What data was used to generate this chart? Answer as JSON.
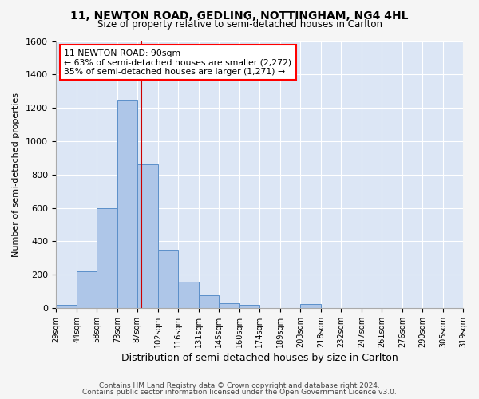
{
  "title1": "11, NEWTON ROAD, GEDLING, NOTTINGHAM, NG4 4HL",
  "title2": "Size of property relative to semi-detached houses in Carlton",
  "xlabel": "Distribution of semi-detached houses by size in Carlton",
  "ylabel": "Number of semi-detached properties",
  "footnote1": "Contains HM Land Registry data © Crown copyright and database right 2024.",
  "footnote2": "Contains public sector information licensed under the Open Government Licence v3.0.",
  "annotation_title": "11 NEWTON ROAD: 90sqm",
  "annotation_line1": "← 63% of semi-detached houses are smaller (2,272)",
  "annotation_line2": "35% of semi-detached houses are larger (1,271) →",
  "subject_size": 90,
  "bar_edges": [
    29,
    44,
    58,
    73,
    87,
    102,
    116,
    131,
    145,
    160,
    174,
    189,
    203,
    218,
    232,
    247,
    261,
    276,
    290,
    305,
    319
  ],
  "bar_heights": [
    20,
    220,
    600,
    1250,
    860,
    350,
    160,
    75,
    30,
    20,
    0,
    0,
    25,
    0,
    0,
    0,
    0,
    0,
    0,
    0
  ],
  "bar_color": "#aec6e8",
  "bar_edgecolor": "#5b8fc9",
  "subject_line_color": "#cc0000",
  "background_color": "#dce6f5",
  "grid_color": "#ffffff",
  "fig_facecolor": "#f5f5f5",
  "ylim": [
    0,
    1600
  ],
  "yticks": [
    0,
    200,
    400,
    600,
    800,
    1000,
    1200,
    1400,
    1600
  ]
}
